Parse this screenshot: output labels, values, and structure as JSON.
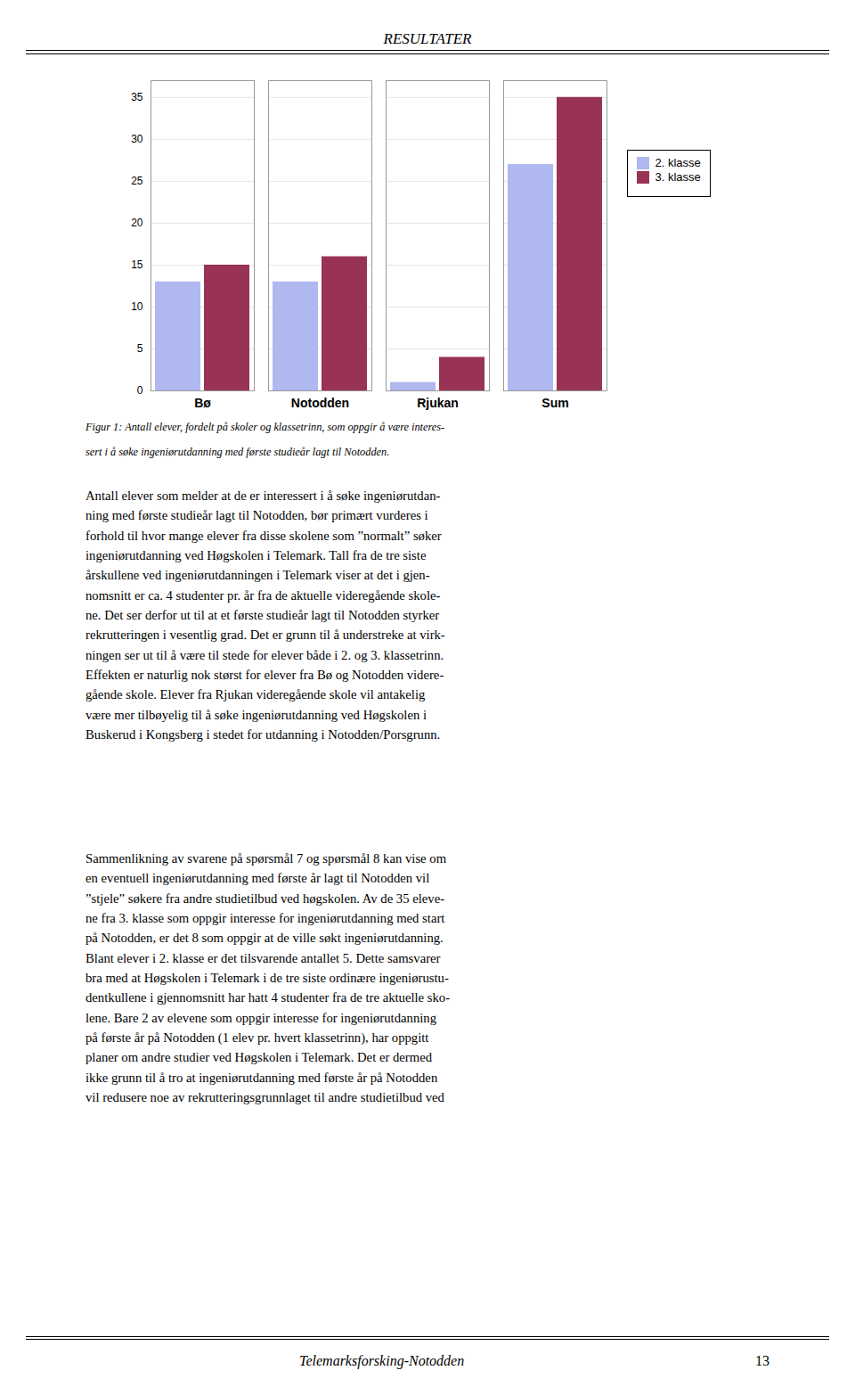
{
  "chart_data": {
    "type": "bar",
    "title": "RESULTATER",
    "categories": [
      "Bø",
      "Notodden",
      "Rjukan",
      "Sum"
    ],
    "series": [
      {
        "name": "2. klasse",
        "color": "#b0b8f0",
        "values": [
          13,
          13,
          1,
          27
        ]
      },
      {
        "name": "3. klasse",
        "color": "#993355",
        "values": [
          15,
          16,
          4,
          35
        ]
      }
    ],
    "ylim": [
      0,
      37
    ],
    "yticks": [
      0,
      5,
      10,
      15,
      20,
      25,
      30,
      35
    ],
    "grid": true,
    "legend": "right",
    "annotations": [
      "Figur 1: Antall elever, fordelt på skoler og klassetrinn,  som oppgir å være interes-",
      "sert i å søke ingeniørutdanning med første studieår lagt til Notodden.",
      "Antall elever som melder at de er interessert i å søke ingeniørutdan-\nning med første studieår lagt til Notodden, bør primært vurderes i\nforhold til hvor mange elever fra disse skolene som ”normalt” søker\ningeniørutdanning ved Høgskolen i Telemark. Tall fra de tre siste\nårskullene ved ingeniørutdanningen i Telemark viser at det i gjen-\nnomsnitt er ca. 4 studenter pr. år fra de aktuelle videregående skole-\nne. Det ser derfor ut til at et første studieår lagt til Notodden styrker\nrekrutteringen i vesentlig grad. Det er grunn til å understreke at virk-\nningen ser ut til å være til stede for elever både i 2. og 3. klassetrinn.\nEffekten er naturlig nok størst for elever fra Bø og Notodden videre-\ngående skole. Elever fra Rjukan videregående skole vil antakelig\nvære mer tilbøyelig til å søke ingeniørutdanning ved Høgskolen i\nBuskerud i Kongsberg i stedet for utdanning i Notodden/Porsgrunn.",
      "Sammenlikning av svarene på spørsmål 7 og spørsmål 8 kan vise om\nen eventuell ingeniørutdanning med første år lagt til Notodden vil\n”stjele” søkere fra andre studietilbud ved høgskolen. Av de 35 eleve-\nne fra 3. klasse som oppgir interesse for ingeniørutdanning med start\npå Notodden, er det 8 som oppgir at de ville søkt ingeniørutdanning.\nBlant elever i 2. klasse er det tilsvarende antallet 5. Dette samsvarer\nbra med at Høgskolen i Telemark i de tre siste ordinære ingeniørustu-\ndentkullene i gjennomsnitt har hatt 4 studenter fra de tre aktuelle sko-\nlene. Bare 2 av elevene som oppgir interesse for ingeniørutdanning\npå første år på Notodden (1 elev pr. hvert klassetrinn), har oppgitt\nplaner om andre studier ved Høgskolen i Telemark. Det er dermed\nikke grunn til å tro at ingeniørutdanning med første år på Notodden\nvil redusere noe av rekrutteringsgrunnlaget til andre studietilbud ved",
      "Telemarksforsking-Notodden",
      "13"
    ]
  }
}
